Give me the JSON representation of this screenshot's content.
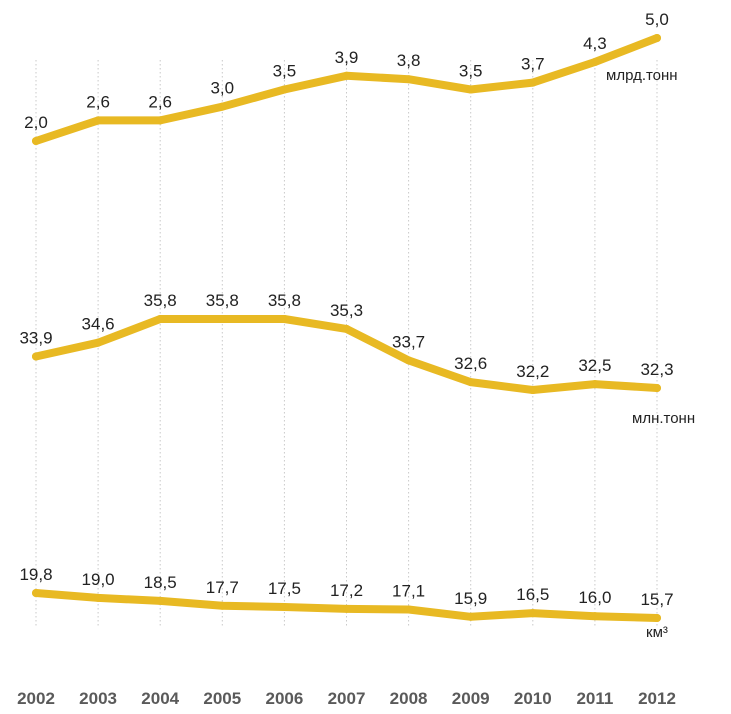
{
  "chart_data": {
    "type": "line",
    "categories": [
      "2002",
      "2003",
      "2004",
      "2005",
      "2006",
      "2007",
      "2008",
      "2009",
      "2010",
      "2011",
      "2012"
    ],
    "colors": {
      "line": "#e8b923",
      "grid": "#c9c9c9",
      "text": "#222222",
      "year_text": "#5a5a5a"
    },
    "grid": true,
    "series": [
      {
        "name": "млрд.тонн",
        "values": [
          2.0,
          2.6,
          2.6,
          3.0,
          3.5,
          3.9,
          3.8,
          3.5,
          3.7,
          4.3,
          5.0
        ],
        "labels": [
          "2,0",
          "2,6",
          "2,6",
          "3,0",
          "3,5",
          "3,9",
          "3,8",
          "3,5",
          "3,7",
          "4,3",
          "5,0"
        ]
      },
      {
        "name": "млн.тонн",
        "values": [
          33.9,
          34.6,
          35.8,
          35.8,
          35.8,
          35.3,
          33.7,
          32.6,
          32.2,
          32.5,
          32.3
        ],
        "labels": [
          "33,9",
          "34,6",
          "35,8",
          "35,8",
          "35,8",
          "35,3",
          "33,7",
          "32,6",
          "32,2",
          "32,5",
          "32,3"
        ]
      },
      {
        "name": "км³",
        "values": [
          19.8,
          19.0,
          18.5,
          17.7,
          17.5,
          17.2,
          17.1,
          15.9,
          16.5,
          16.0,
          15.7
        ],
        "labels": [
          "19,8",
          "19,0",
          "18,5",
          "17,7",
          "17,5",
          "17,2",
          "17,1",
          "15,9",
          "16,5",
          "16,0",
          "15,7"
        ]
      }
    ]
  }
}
